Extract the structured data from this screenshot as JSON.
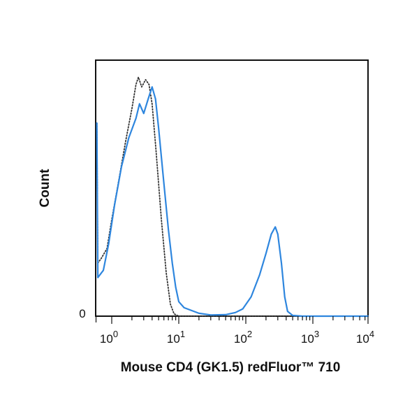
{
  "chart_data": {
    "type": "line",
    "title": "",
    "xlabel": "Mouse CD4 (GK1.5) redFluor™ 710",
    "ylabel": "Count",
    "x_scale": "log",
    "xlim": [
      0.6,
      10000
    ],
    "ylim": [
      0,
      100
    ],
    "x_ticks": [
      {
        "base": "10",
        "exp": "0",
        "value": 1
      },
      {
        "base": "10",
        "exp": "1",
        "value": 10
      },
      {
        "base": "10",
        "exp": "2",
        "value": 100
      },
      {
        "base": "10",
        "exp": "3",
        "value": 1000
      },
      {
        "base": "10",
        "exp": "4",
        "value": 10000
      }
    ],
    "y_ticks": [
      {
        "label": "0",
        "value": 0
      }
    ],
    "grid": false,
    "legend": "none",
    "series": [
      {
        "style": "dotted",
        "color": "#333333",
        "points": [
          [
            0.6,
            80
          ],
          [
            0.62,
            22
          ],
          [
            0.7,
            24
          ],
          [
            0.85,
            28
          ],
          [
            1.0,
            40
          ],
          [
            1.25,
            55
          ],
          [
            1.6,
            72
          ],
          [
            2.0,
            86
          ],
          [
            2.3,
            96
          ],
          [
            2.5,
            99
          ],
          [
            2.8,
            95
          ],
          [
            3.2,
            98
          ],
          [
            3.6,
            96
          ],
          [
            4.0,
            88
          ],
          [
            4.6,
            68
          ],
          [
            5.5,
            40
          ],
          [
            6.5,
            18
          ],
          [
            7.5,
            5
          ],
          [
            8.5,
            1
          ],
          [
            10,
            0
          ],
          [
            100,
            0
          ],
          [
            10000,
            0
          ]
        ]
      },
      {
        "style": "solid",
        "color": "#2e86de",
        "points": [
          [
            0.6,
            80
          ],
          [
            0.62,
            16
          ],
          [
            0.75,
            19
          ],
          [
            0.9,
            30
          ],
          [
            1.1,
            46
          ],
          [
            1.4,
            62
          ],
          [
            1.8,
            74
          ],
          [
            2.3,
            82
          ],
          [
            2.6,
            88
          ],
          [
            3.0,
            84
          ],
          [
            3.5,
            90
          ],
          [
            4.0,
            95
          ],
          [
            4.5,
            90
          ],
          [
            5.0,
            78
          ],
          [
            6.0,
            55
          ],
          [
            7.0,
            36
          ],
          [
            8.0,
            22
          ],
          [
            9.0,
            12
          ],
          [
            10,
            6
          ],
          [
            12,
            3.5
          ],
          [
            15,
            2.5
          ],
          [
            20,
            1.2
          ],
          [
            30,
            0.5
          ],
          [
            50,
            0.6
          ],
          [
            70,
            1.5
          ],
          [
            90,
            3
          ],
          [
            120,
            8
          ],
          [
            160,
            17
          ],
          [
            200,
            26
          ],
          [
            240,
            34
          ],
          [
            275,
            37
          ],
          [
            300,
            34
          ],
          [
            340,
            22
          ],
          [
            380,
            8
          ],
          [
            420,
            2
          ],
          [
            500,
            0.3
          ],
          [
            700,
            0
          ],
          [
            10000,
            0
          ]
        ]
      }
    ]
  }
}
